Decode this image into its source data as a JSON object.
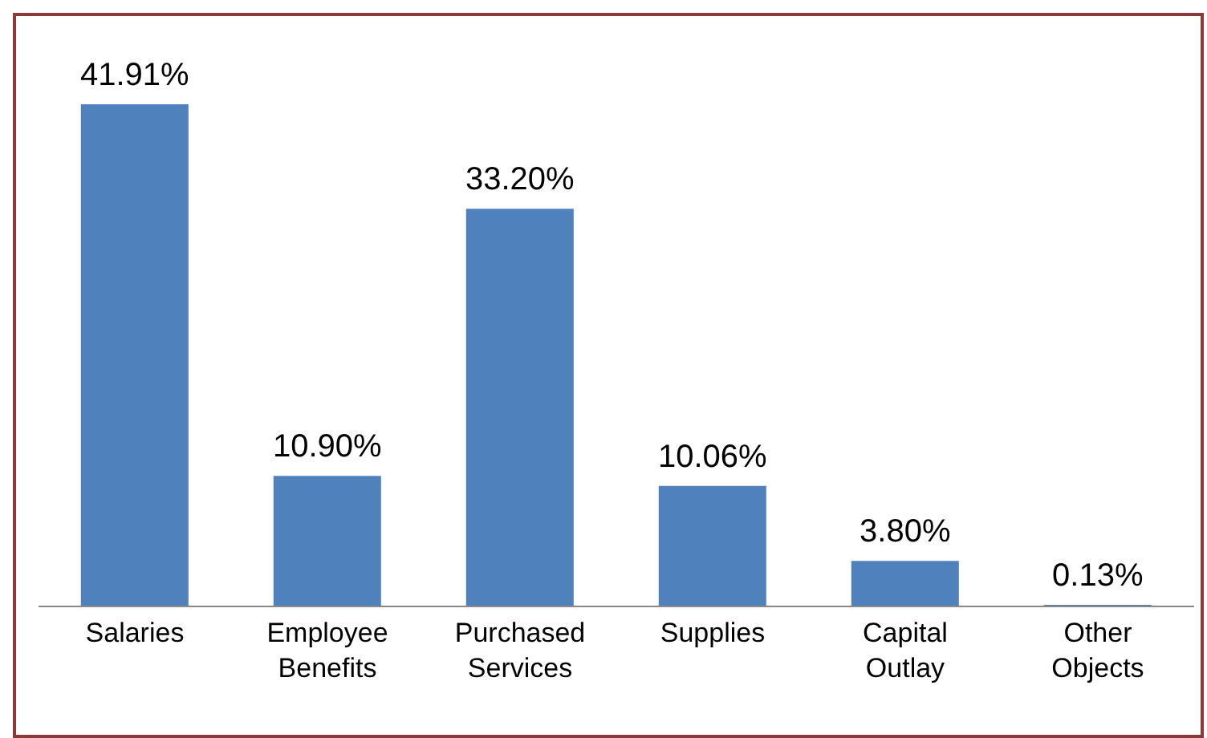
{
  "chart_data": {
    "type": "bar",
    "categories": [
      "Salaries",
      "Employee Benefits",
      "Purchased Services",
      "Supplies",
      "Capital Outlay",
      "Other Objects"
    ],
    "values": [
      41.91,
      10.9,
      33.2,
      10.06,
      3.8,
      0.13
    ],
    "value_labels": [
      "41.91%",
      "10.90%",
      "33.20%",
      "10.06%",
      "3.80%",
      "0.13%"
    ],
    "color": "#4f81bd",
    "grid": false,
    "legend": false
  }
}
